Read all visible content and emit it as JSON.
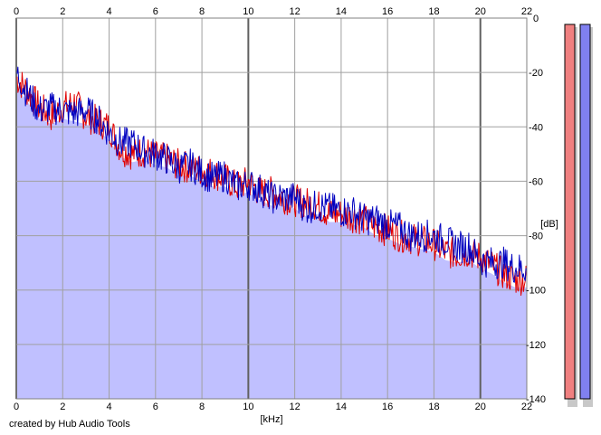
{
  "chart_data": {
    "type": "line",
    "xlabel": "[kHz]",
    "ylabel": "[dB]",
    "xlim": [
      0,
      22
    ],
    "ylim": [
      -140,
      0
    ],
    "x_ticks": [
      0,
      2,
      4,
      6,
      8,
      10,
      12,
      14,
      16,
      18,
      20,
      22
    ],
    "y_ticks": [
      0,
      -20,
      -40,
      -60,
      -80,
      -100,
      -120,
      -140
    ],
    "grid": true,
    "fill": true,
    "series": [
      {
        "color": "#e00000",
        "x": [
          0,
          0.5,
          1,
          1.5,
          2,
          2.5,
          3,
          3.5,
          4,
          4.5,
          5,
          5.5,
          6,
          6.5,
          7,
          7.5,
          8,
          8.5,
          9,
          9.5,
          10,
          10.5,
          11,
          11.5,
          12,
          12.5,
          13,
          13.5,
          14,
          14.5,
          15,
          15.5,
          16,
          16.5,
          17,
          17.5,
          18,
          18.5,
          19,
          19.5,
          20,
          20.5,
          21,
          21.5,
          22
        ],
        "y": [
          -22,
          -27,
          -33,
          -36,
          -33,
          -31,
          -36,
          -38,
          -40,
          -48,
          -50,
          -49,
          -51,
          -52,
          -54,
          -55,
          -56,
          -57,
          -59,
          -62,
          -60,
          -64,
          -64,
          -66,
          -67,
          -68,
          -69,
          -72,
          -72,
          -73,
          -74,
          -77,
          -78,
          -80,
          -81,
          -82,
          -83,
          -86,
          -87,
          -86,
          -88,
          -91,
          -94,
          -96,
          -96
        ]
      },
      {
        "color": "#0000c0",
        "x": [
          0,
          0.5,
          1,
          1.5,
          2,
          2.5,
          3,
          3.5,
          4,
          4.5,
          5,
          5.5,
          6,
          6.5,
          7,
          7.5,
          8,
          8.5,
          9,
          9.5,
          10,
          10.5,
          11,
          11.5,
          12,
          12.5,
          13,
          13.5,
          14,
          14.5,
          15,
          15.5,
          16,
          16.5,
          17,
          17.5,
          18,
          18.5,
          19,
          19.5,
          20,
          20.5,
          21,
          21.5,
          22
        ],
        "y": [
          -20,
          -28,
          -34,
          -33,
          -34,
          -35,
          -34,
          -37,
          -42,
          -46,
          -46,
          -49,
          -50,
          -52,
          -55,
          -54,
          -57,
          -59,
          -58,
          -62,
          -61,
          -63,
          -66,
          -66,
          -66,
          -70,
          -69,
          -70,
          -71,
          -71,
          -74,
          -74,
          -76,
          -77,
          -80,
          -80,
          -80,
          -82,
          -84,
          -84,
          -89,
          -90,
          -90,
          -92,
          -92
        ]
      }
    ]
  },
  "level_meters": [
    {
      "color": "#f08080",
      "level_db": 0
    },
    {
      "color": "#8080f0",
      "level_db": 0
    }
  ],
  "footer": {
    "credit": "created by Hub Audio Tools"
  }
}
